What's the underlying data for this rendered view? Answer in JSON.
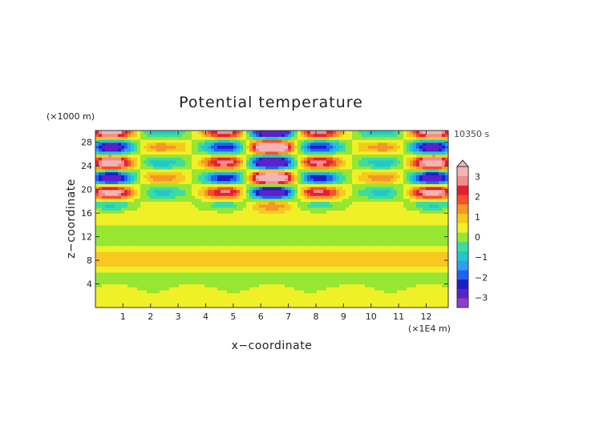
{
  "chart_data": {
    "type": "heatmap",
    "title": "Potential temperature",
    "xlabel": "x−coordinate",
    "ylabel": "z−coordinate",
    "x_unit": "(×1E4 m)",
    "y_unit": "(×1000 m)",
    "time_label": "10350 s",
    "xlim": [
      0,
      12.8
    ],
    "ylim": [
      0,
      30
    ],
    "x_ticks": [
      1,
      2,
      3,
      4,
      5,
      6,
      7,
      8,
      9,
      10,
      11,
      12
    ],
    "y_ticks": [
      4,
      8,
      12,
      16,
      20,
      24,
      28
    ],
    "colorbar": {
      "ticks": [
        3,
        2,
        1,
        0,
        -1,
        -2,
        -3
      ],
      "levels": [
        -3.5,
        -3,
        -2.5,
        -2,
        -1.5,
        -1,
        -0.5,
        0,
        0.5,
        1,
        1.5,
        2,
        2.5,
        3,
        3.5
      ],
      "colors": [
        "#8b3fc8",
        "#5a22c8",
        "#1e1ec8",
        "#1e64f0",
        "#2ea0f0",
        "#22c8c8",
        "#3cdca0",
        "#96e632",
        "#f0f028",
        "#f7c81e",
        "#f59628",
        "#f55028",
        "#e61e32",
        "#f08c8c",
        "#f5b4b4"
      ],
      "over_color": "#f5b4b4",
      "extend": "max"
    },
    "field_description_values": {
      "lower_layer_value_band": [
        -1,
        1
      ],
      "upper_layer_value_band": [
        -3.5,
        3.5
      ],
      "transition_height": 15
    }
  }
}
